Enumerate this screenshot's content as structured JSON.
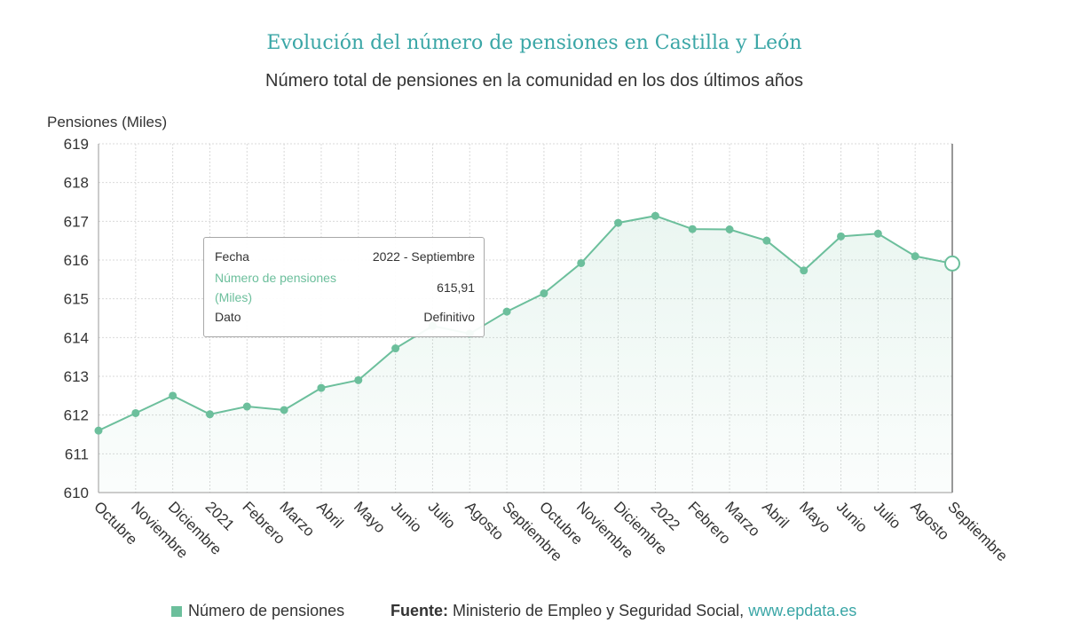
{
  "chart_data": {
    "type": "area",
    "title": "Evolución del número de pensiones en Castilla y León",
    "subtitle": "Número total de pensiones en la comunidad en los dos últimos años",
    "ylabel": "Pensiones (Miles)",
    "xlabel": "",
    "ylim": [
      610,
      619
    ],
    "yticks": [
      610,
      611,
      612,
      613,
      614,
      615,
      616,
      617,
      618,
      619
    ],
    "grid": true,
    "categories": [
      "Octubre",
      "Noviembre",
      "Diciembre",
      "2021",
      "Febrero",
      "Marzo",
      "Abril",
      "Mayo",
      "Junio",
      "Julio",
      "Agosto",
      "Septiembre",
      "Octubre",
      "Noviembre",
      "Diciembre",
      "2022",
      "Febrero",
      "Marzo",
      "Abril",
      "Mayo",
      "Junio",
      "Julio",
      "Agosto",
      "Septiembre"
    ],
    "series": [
      {
        "name": "Número de pensiones",
        "color": "#6cbf9c",
        "values": [
          611.6,
          612.05,
          612.5,
          612.02,
          612.22,
          612.13,
          612.7,
          612.9,
          613.72,
          614.3,
          614.1,
          614.67,
          615.14,
          615.92,
          616.96,
          617.14,
          616.8,
          616.79,
          616.5,
          615.73,
          616.61,
          616.68,
          616.1,
          615.91
        ]
      }
    ],
    "highlight_index": 23
  },
  "tooltip": {
    "fecha_label": "Fecha",
    "fecha_value": "2022 - Septiembre",
    "metric_label": "Número de pensiones (Miles)",
    "metric_value": "615,91",
    "dato_label": "Dato",
    "dato_value": "Definitivo"
  },
  "legend": {
    "label": "Número de pensiones",
    "color": "#6cbf9c"
  },
  "source": {
    "label": "Fuente:",
    "text": "Ministerio de Empleo y Seguridad Social,",
    "link": "www.epdata.es"
  }
}
